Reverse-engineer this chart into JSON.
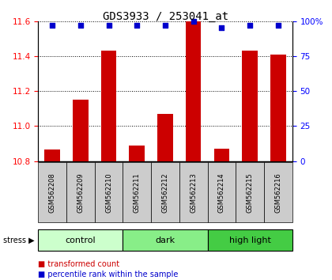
{
  "title": "GDS3933 / 253041_at",
  "samples": [
    "GSM562208",
    "GSM562209",
    "GSM562210",
    "GSM562211",
    "GSM562212",
    "GSM562213",
    "GSM562214",
    "GSM562215",
    "GSM562216"
  ],
  "bar_values": [
    10.865,
    11.15,
    11.43,
    10.89,
    11.07,
    11.6,
    10.87,
    11.43,
    11.41
  ],
  "percentile_values": [
    97,
    97,
    97,
    97,
    97,
    100,
    95,
    97,
    97
  ],
  "ylim_left": [
    10.8,
    11.6
  ],
  "ylim_right": [
    0,
    100
  ],
  "yticks_left": [
    10.8,
    11.0,
    11.2,
    11.4,
    11.6
  ],
  "yticks_right": [
    0,
    25,
    50,
    75,
    100
  ],
  "groups": [
    {
      "label": "control",
      "start": 0,
      "end": 3,
      "color": "#ccffcc"
    },
    {
      "label": "dark",
      "start": 3,
      "end": 6,
      "color": "#88ee88"
    },
    {
      "label": "high light",
      "start": 6,
      "end": 9,
      "color": "#44cc44"
    }
  ],
  "bar_color": "#cc0000",
  "dot_color": "#0000cc",
  "bar_bottom": 10.8,
  "sample_box_color": "#cccccc",
  "stress_label": "stress",
  "legend_items": [
    {
      "label": "transformed count",
      "color": "#cc0000"
    },
    {
      "label": "percentile rank within the sample",
      "color": "#0000cc"
    }
  ],
  "title_fontsize": 10,
  "tick_fontsize": 7.5,
  "sample_fontsize": 6,
  "group_fontsize": 8,
  "legend_fontsize": 7
}
